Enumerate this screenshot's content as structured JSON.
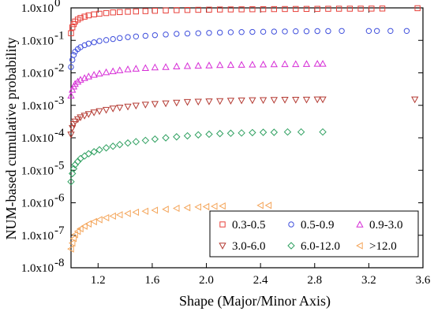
{
  "chart_data": {
    "type": "scatter",
    "xlabel": "Shape (Major/Minor Axis)",
    "ylabel": "NUM-based cumulative probability",
    "xlim": [
      1.0,
      3.6
    ],
    "ylim_log10": [
      -8,
      0
    ],
    "y_scale": "log",
    "x_ticks": [
      1.2,
      1.6,
      2.0,
      2.4,
      2.8,
      3.2,
      3.6
    ],
    "x_tick_labels": [
      "1.2",
      "1.6",
      "2.0",
      "2.4",
      "2.8",
      "3.2",
      "3.6"
    ],
    "y_tick_exponents": [
      0,
      -1,
      -2,
      -3,
      -4,
      -5,
      -6,
      -7,
      -8
    ],
    "y_tick_mantissa": "1.0x10",
    "legend_position": "bottom-right",
    "series": [
      {
        "name": "0.3-0.5",
        "marker": "square",
        "color": "#e8403a",
        "points": [
          [
            1.0,
            -0.78
          ],
          [
            1.01,
            -0.6
          ],
          [
            1.02,
            -0.5
          ],
          [
            1.03,
            -0.42
          ],
          [
            1.05,
            -0.36
          ],
          [
            1.07,
            -0.31
          ],
          [
            1.1,
            -0.27
          ],
          [
            1.13,
            -0.23
          ],
          [
            1.17,
            -0.2
          ],
          [
            1.21,
            -0.18
          ],
          [
            1.26,
            -0.16
          ],
          [
            1.31,
            -0.14
          ],
          [
            1.36,
            -0.13
          ],
          [
            1.42,
            -0.12
          ],
          [
            1.48,
            -0.11
          ],
          [
            1.55,
            -0.1
          ],
          [
            1.62,
            -0.09
          ],
          [
            1.7,
            -0.08
          ],
          [
            1.78,
            -0.07
          ],
          [
            1.86,
            -0.065
          ],
          [
            1.94,
            -0.06
          ],
          [
            2.02,
            -0.055
          ],
          [
            2.1,
            -0.05
          ],
          [
            2.18,
            -0.048
          ],
          [
            2.26,
            -0.045
          ],
          [
            2.34,
            -0.042
          ],
          [
            2.42,
            -0.04
          ],
          [
            2.5,
            -0.038
          ],
          [
            2.58,
            -0.036
          ],
          [
            2.66,
            -0.034
          ],
          [
            2.74,
            -0.032
          ],
          [
            2.82,
            -0.03
          ],
          [
            2.9,
            -0.028
          ],
          [
            2.98,
            -0.026
          ],
          [
            3.06,
            -0.025
          ],
          [
            3.14,
            -0.024
          ],
          [
            3.22,
            -0.022
          ],
          [
            3.3,
            -0.02
          ],
          [
            3.56,
            -0.01
          ]
        ]
      },
      {
        "name": "0.5-0.9",
        "marker": "circle",
        "color": "#3f4fdc",
        "points": [
          [
            1.0,
            -1.82
          ],
          [
            1.01,
            -1.6
          ],
          [
            1.02,
            -1.45
          ],
          [
            1.03,
            -1.35
          ],
          [
            1.05,
            -1.27
          ],
          [
            1.07,
            -1.21
          ],
          [
            1.1,
            -1.15
          ],
          [
            1.13,
            -1.1
          ],
          [
            1.17,
            -1.06
          ],
          [
            1.21,
            -1.02
          ],
          [
            1.26,
            -0.99
          ],
          [
            1.31,
            -0.96
          ],
          [
            1.36,
            -0.93
          ],
          [
            1.42,
            -0.9
          ],
          [
            1.48,
            -0.88
          ],
          [
            1.55,
            -0.86
          ],
          [
            1.62,
            -0.84
          ],
          [
            1.7,
            -0.82
          ],
          [
            1.78,
            -0.8
          ],
          [
            1.86,
            -0.79
          ],
          [
            1.94,
            -0.78
          ],
          [
            2.02,
            -0.77
          ],
          [
            2.1,
            -0.76
          ],
          [
            2.18,
            -0.75
          ],
          [
            2.26,
            -0.745
          ],
          [
            2.34,
            -0.74
          ],
          [
            2.42,
            -0.735
          ],
          [
            2.5,
            -0.73
          ],
          [
            2.58,
            -0.725
          ],
          [
            2.66,
            -0.72
          ],
          [
            2.74,
            -0.72
          ],
          [
            2.82,
            -0.715
          ],
          [
            2.9,
            -0.715
          ],
          [
            3.0,
            -0.71
          ],
          [
            3.2,
            -0.71
          ],
          [
            3.26,
            -0.71
          ],
          [
            3.36,
            -0.71
          ],
          [
            3.48,
            -0.71
          ]
        ]
      },
      {
        "name": "0.9-3.0",
        "marker": "triangle-up",
        "color": "#d62cd6",
        "points": [
          [
            1.0,
            -2.7
          ],
          [
            1.01,
            -2.52
          ],
          [
            1.02,
            -2.42
          ],
          [
            1.03,
            -2.34
          ],
          [
            1.05,
            -2.27
          ],
          [
            1.07,
            -2.21
          ],
          [
            1.1,
            -2.16
          ],
          [
            1.13,
            -2.11
          ],
          [
            1.17,
            -2.06
          ],
          [
            1.21,
            -2.02
          ],
          [
            1.26,
            -1.98
          ],
          [
            1.31,
            -1.95
          ],
          [
            1.36,
            -1.92
          ],
          [
            1.42,
            -1.89
          ],
          [
            1.48,
            -1.87
          ],
          [
            1.55,
            -1.85
          ],
          [
            1.62,
            -1.83
          ],
          [
            1.7,
            -1.82
          ],
          [
            1.78,
            -1.8
          ],
          [
            1.86,
            -1.79
          ],
          [
            1.94,
            -1.78
          ],
          [
            2.02,
            -1.77
          ],
          [
            2.1,
            -1.76
          ],
          [
            2.18,
            -1.755
          ],
          [
            2.26,
            -1.75
          ],
          [
            2.34,
            -1.745
          ],
          [
            2.42,
            -1.74
          ],
          [
            2.5,
            -1.735
          ],
          [
            2.58,
            -1.73
          ],
          [
            2.66,
            -1.73
          ],
          [
            2.74,
            -1.725
          ],
          [
            2.82,
            -1.72
          ],
          [
            2.86,
            -1.72
          ]
        ]
      },
      {
        "name": "3.0-6.0",
        "marker": "triangle-down",
        "color": "#b43a32",
        "points": [
          [
            1.0,
            -3.9
          ],
          [
            1.01,
            -3.7
          ],
          [
            1.02,
            -3.58
          ],
          [
            1.03,
            -3.5
          ],
          [
            1.05,
            -3.43
          ],
          [
            1.07,
            -3.37
          ],
          [
            1.1,
            -3.32
          ],
          [
            1.13,
            -3.27
          ],
          [
            1.17,
            -3.22
          ],
          [
            1.21,
            -3.18
          ],
          [
            1.26,
            -3.14
          ],
          [
            1.31,
            -3.1
          ],
          [
            1.36,
            -3.07
          ],
          [
            1.42,
            -3.04
          ],
          [
            1.48,
            -3.01
          ],
          [
            1.55,
            -2.98
          ],
          [
            1.62,
            -2.96
          ],
          [
            1.7,
            -2.94
          ],
          [
            1.78,
            -2.92
          ],
          [
            1.86,
            -2.9
          ],
          [
            1.94,
            -2.89
          ],
          [
            2.02,
            -2.88
          ],
          [
            2.1,
            -2.87
          ],
          [
            2.18,
            -2.86
          ],
          [
            2.26,
            -2.85
          ],
          [
            2.34,
            -2.845
          ],
          [
            2.42,
            -2.84
          ],
          [
            2.5,
            -2.835
          ],
          [
            2.58,
            -2.83
          ],
          [
            2.66,
            -2.83
          ],
          [
            2.74,
            -2.825
          ],
          [
            2.82,
            -2.82
          ],
          [
            2.86,
            -2.82
          ],
          [
            3.54,
            -2.82
          ]
        ]
      },
      {
        "name": "6.0-12.0",
        "marker": "diamond",
        "color": "#2fa060",
        "points": [
          [
            1.0,
            -5.35
          ],
          [
            1.01,
            -5.1
          ],
          [
            1.02,
            -4.95
          ],
          [
            1.03,
            -4.83
          ],
          [
            1.05,
            -4.73
          ],
          [
            1.07,
            -4.64
          ],
          [
            1.1,
            -4.56
          ],
          [
            1.13,
            -4.49
          ],
          [
            1.17,
            -4.43
          ],
          [
            1.21,
            -4.37
          ],
          [
            1.26,
            -4.31
          ],
          [
            1.31,
            -4.26
          ],
          [
            1.36,
            -4.21
          ],
          [
            1.42,
            -4.16
          ],
          [
            1.48,
            -4.12
          ],
          [
            1.55,
            -4.08
          ],
          [
            1.62,
            -4.04
          ],
          [
            1.7,
            -4.0
          ],
          [
            1.78,
            -3.97
          ],
          [
            1.86,
            -3.94
          ],
          [
            1.94,
            -3.91
          ],
          [
            2.02,
            -3.89
          ],
          [
            2.1,
            -3.87
          ],
          [
            2.18,
            -3.86
          ],
          [
            2.26,
            -3.85
          ],
          [
            2.34,
            -3.84
          ],
          [
            2.42,
            -3.83
          ],
          [
            2.5,
            -3.83
          ],
          [
            2.6,
            -3.82
          ],
          [
            2.7,
            -3.82
          ],
          [
            2.86,
            -3.82
          ]
        ]
      },
      {
        "name": ">12.0",
        "marker": "triangle-left",
        "color": "#f4a55a",
        "points": [
          [
            1.0,
            -7.42
          ],
          [
            1.01,
            -7.24
          ],
          [
            1.02,
            -7.1
          ],
          [
            1.03,
            -6.98
          ],
          [
            1.05,
            -6.88
          ],
          [
            1.07,
            -6.8
          ],
          [
            1.1,
            -6.72
          ],
          [
            1.13,
            -6.65
          ],
          [
            1.17,
            -6.58
          ],
          [
            1.21,
            -6.52
          ],
          [
            1.26,
            -6.46
          ],
          [
            1.31,
            -6.41
          ],
          [
            1.36,
            -6.37
          ],
          [
            1.42,
            -6.33
          ],
          [
            1.48,
            -6.29
          ],
          [
            1.55,
            -6.26
          ],
          [
            1.62,
            -6.23
          ],
          [
            1.7,
            -6.2
          ],
          [
            1.78,
            -6.17
          ],
          [
            1.86,
            -6.15
          ],
          [
            1.94,
            -6.13
          ],
          [
            2.0,
            -6.12
          ],
          [
            2.06,
            -6.11
          ],
          [
            2.12,
            -6.1
          ],
          [
            2.4,
            -6.08
          ],
          [
            2.46,
            -6.08
          ]
        ]
      }
    ]
  }
}
